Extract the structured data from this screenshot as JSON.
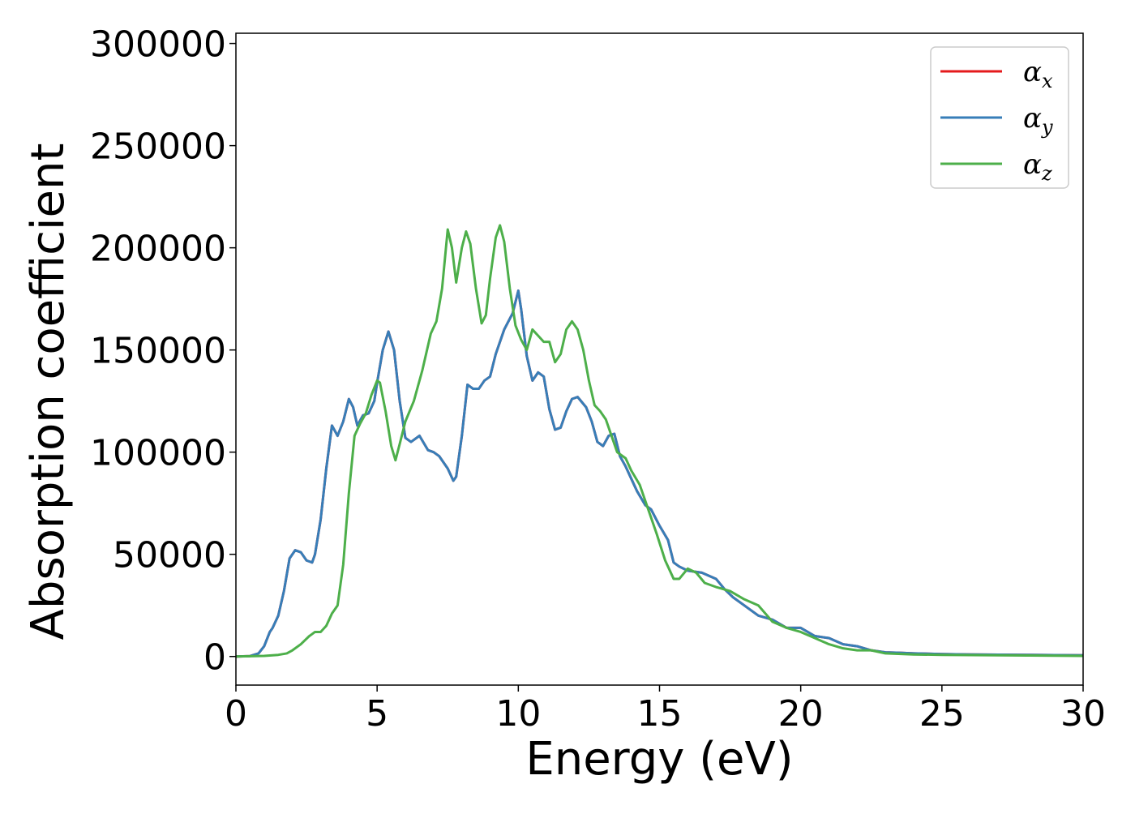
{
  "chart_data": {
    "type": "line",
    "title": "",
    "xlabel": "Energy (eV)",
    "ylabel": "Absorption coefficient",
    "xlim": [
      0,
      30
    ],
    "ylim": [
      -14000,
      305000
    ],
    "xticks": [
      0,
      5,
      10,
      15,
      20,
      25,
      30
    ],
    "yticks": [
      0,
      50000,
      100000,
      150000,
      200000,
      250000,
      300000
    ],
    "xtick_labels": [
      "0",
      "5",
      "10",
      "15",
      "20",
      "25",
      "30"
    ],
    "ytick_labels": [
      "0",
      "50000",
      "100000",
      "150000",
      "200000",
      "250000",
      "300000"
    ],
    "grid": false,
    "legend_position": "top-right",
    "series": [
      {
        "name": "αx",
        "legend_base": "α",
        "legend_sub": "x",
        "color": "#e41a1c",
        "x": [
          0,
          0.5,
          0.8,
          1.0,
          1.2,
          1.3,
          1.5,
          1.7,
          1.9,
          2.1,
          2.3,
          2.5,
          2.7,
          2.8,
          3.0,
          3.2,
          3.4,
          3.6,
          3.8,
          4.0,
          4.15,
          4.3,
          4.5,
          4.7,
          4.9,
          5.0,
          5.2,
          5.4,
          5.6,
          5.8,
          6.0,
          6.2,
          6.5,
          6.8,
          7.0,
          7.2,
          7.5,
          7.7,
          7.8,
          8.0,
          8.2,
          8.4,
          8.6,
          8.8,
          9.0,
          9.2,
          9.5,
          9.8,
          10.0,
          10.1,
          10.3,
          10.5,
          10.7,
          10.9,
          11.1,
          11.3,
          11.5,
          11.7,
          11.9,
          12.1,
          12.4,
          12.6,
          12.8,
          13.0,
          13.2,
          13.4,
          13.6,
          13.8,
          14.0,
          14.2,
          14.5,
          14.7,
          15.0,
          15.3,
          15.5,
          15.7,
          16.0,
          16.5,
          17.0,
          17.3,
          17.6,
          18.0,
          18.5,
          19.0,
          19.5,
          20.0,
          20.5,
          21.0,
          21.5,
          22.0,
          22.5,
          23.0,
          23.5,
          24.0,
          25.0,
          26.0,
          27.0,
          28.0,
          29.0,
          30.0
        ],
        "values": [
          0,
          200,
          1500,
          5000,
          12000,
          14000,
          20000,
          32000,
          48000,
          52000,
          51000,
          47000,
          46000,
          50000,
          67000,
          92000,
          113000,
          108000,
          115000,
          126000,
          122000,
          113000,
          118000,
          119000,
          125000,
          134000,
          150000,
          159000,
          150000,
          125000,
          107000,
          105000,
          108000,
          101000,
          100000,
          98000,
          92000,
          86000,
          88000,
          108000,
          133000,
          131000,
          131000,
          135000,
          137000,
          148000,
          160000,
          168000,
          179000,
          170000,
          147000,
          135000,
          139000,
          137000,
          121000,
          111000,
          112000,
          120000,
          126000,
          127000,
          122000,
          115000,
          105000,
          103000,
          108000,
          109000,
          98000,
          93000,
          87000,
          81000,
          74000,
          72000,
          64000,
          57000,
          46000,
          44000,
          42000,
          41000,
          38000,
          33000,
          29000,
          25000,
          20000,
          18000,
          14000,
          14000,
          10000,
          9000,
          6000,
          5000,
          3000,
          2000,
          1800,
          1500,
          1200,
          1000,
          900,
          800,
          700,
          600
        ]
      },
      {
        "name": "αy",
        "legend_base": "α",
        "legend_sub": "y",
        "color": "#377eb8",
        "x": [
          0,
          0.5,
          0.8,
          1.0,
          1.2,
          1.3,
          1.5,
          1.7,
          1.9,
          2.1,
          2.3,
          2.5,
          2.7,
          2.8,
          3.0,
          3.2,
          3.4,
          3.6,
          3.8,
          4.0,
          4.15,
          4.3,
          4.5,
          4.7,
          4.9,
          5.0,
          5.2,
          5.4,
          5.6,
          5.8,
          6.0,
          6.2,
          6.5,
          6.8,
          7.0,
          7.2,
          7.5,
          7.7,
          7.8,
          8.0,
          8.2,
          8.4,
          8.6,
          8.8,
          9.0,
          9.2,
          9.5,
          9.8,
          10.0,
          10.1,
          10.3,
          10.5,
          10.7,
          10.9,
          11.1,
          11.3,
          11.5,
          11.7,
          11.9,
          12.1,
          12.4,
          12.6,
          12.8,
          13.0,
          13.2,
          13.4,
          13.6,
          13.8,
          14.0,
          14.2,
          14.5,
          14.7,
          15.0,
          15.3,
          15.5,
          15.7,
          16.0,
          16.5,
          17.0,
          17.3,
          17.6,
          18.0,
          18.5,
          19.0,
          19.5,
          20.0,
          20.5,
          21.0,
          21.5,
          22.0,
          22.5,
          23.0,
          23.5,
          24.0,
          25.0,
          26.0,
          27.0,
          28.0,
          29.0,
          30.0
        ],
        "values": [
          0,
          200,
          1500,
          5000,
          12000,
          14000,
          20000,
          32000,
          48000,
          52000,
          51000,
          47000,
          46000,
          50000,
          67000,
          92000,
          113000,
          108000,
          115000,
          126000,
          122000,
          113000,
          118000,
          119000,
          125000,
          134000,
          150000,
          159000,
          150000,
          125000,
          107000,
          105000,
          108000,
          101000,
          100000,
          98000,
          92000,
          86000,
          88000,
          108000,
          133000,
          131000,
          131000,
          135000,
          137000,
          148000,
          160000,
          168000,
          179000,
          170000,
          147000,
          135000,
          139000,
          137000,
          121000,
          111000,
          112000,
          120000,
          126000,
          127000,
          122000,
          115000,
          105000,
          103000,
          108000,
          109000,
          98000,
          93000,
          87000,
          81000,
          74000,
          72000,
          64000,
          57000,
          46000,
          44000,
          42000,
          41000,
          38000,
          33000,
          29000,
          25000,
          20000,
          18000,
          14000,
          14000,
          10000,
          9000,
          6000,
          5000,
          3000,
          2000,
          1800,
          1500,
          1200,
          1000,
          900,
          800,
          700,
          600
        ]
      },
      {
        "name": "αz",
        "legend_base": "α",
        "legend_sub": "z",
        "color": "#4daf4a",
        "x": [
          0,
          1.0,
          1.5,
          1.8,
          2.0,
          2.3,
          2.6,
          2.8,
          3.0,
          3.2,
          3.4,
          3.6,
          3.8,
          4.0,
          4.2,
          4.4,
          4.6,
          4.8,
          5.0,
          5.1,
          5.3,
          5.5,
          5.65,
          5.8,
          6.0,
          6.3,
          6.6,
          6.9,
          7.1,
          7.3,
          7.5,
          7.65,
          7.8,
          8.0,
          8.15,
          8.3,
          8.5,
          8.7,
          8.85,
          9.0,
          9.2,
          9.35,
          9.5,
          9.7,
          9.9,
          10.1,
          10.3,
          10.5,
          10.7,
          10.9,
          11.1,
          11.3,
          11.5,
          11.7,
          11.9,
          12.1,
          12.3,
          12.5,
          12.7,
          12.9,
          13.1,
          13.3,
          13.5,
          13.8,
          14.0,
          14.3,
          14.6,
          14.9,
          15.2,
          15.5,
          15.7,
          16.0,
          16.3,
          16.6,
          17.0,
          17.5,
          18.0,
          18.5,
          19.0,
          19.5,
          20.0,
          20.5,
          21.0,
          21.5,
          22.0,
          22.5,
          23.0,
          24.0,
          25.0,
          26.0,
          27.0,
          28.0,
          29.0,
          30.0
        ],
        "values": [
          0,
          300,
          800,
          1500,
          3000,
          6000,
          10000,
          12000,
          12000,
          15000,
          21000,
          25000,
          45000,
          80000,
          108000,
          114000,
          119000,
          128000,
          135000,
          134000,
          120000,
          103000,
          96000,
          104000,
          115000,
          125000,
          140000,
          158000,
          164000,
          180000,
          209000,
          200000,
          183000,
          200000,
          208000,
          202000,
          180000,
          163000,
          167000,
          185000,
          205000,
          211000,
          203000,
          180000,
          162000,
          155000,
          150000,
          160000,
          157000,
          154000,
          154000,
          144000,
          148000,
          160000,
          164000,
          160000,
          150000,
          135000,
          123000,
          120000,
          116000,
          108000,
          100000,
          97000,
          91000,
          84000,
          72000,
          60000,
          47000,
          38000,
          38000,
          43000,
          41000,
          36000,
          34000,
          32000,
          28000,
          25000,
          17000,
          14000,
          12000,
          9000,
          6000,
          4000,
          3000,
          3000,
          1500,
          1000,
          800,
          700,
          600,
          500,
          400,
          300
        ]
      }
    ]
  }
}
